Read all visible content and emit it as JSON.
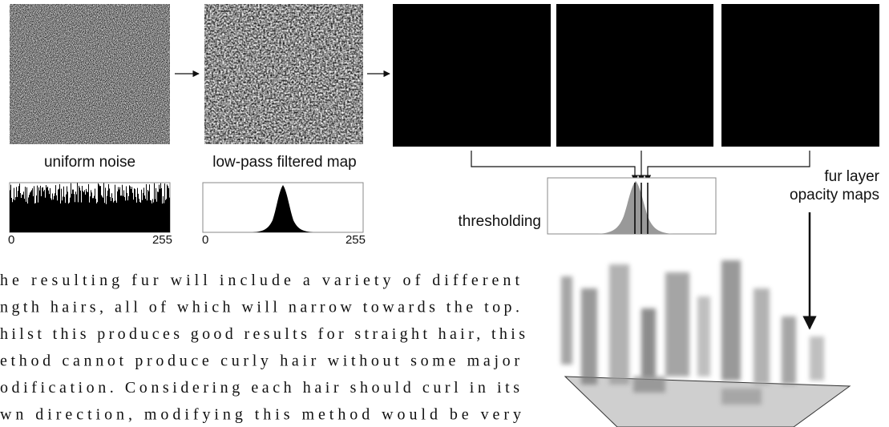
{
  "figure": {
    "labels": {
      "uniform_noise": "uniform noise",
      "low_pass": "low-pass filtered map",
      "thresholding": "thresholding",
      "fur_layer": [
        "fur layer",
        "opacity maps"
      ]
    },
    "hist1_axis": [
      "0",
      "255"
    ],
    "hist2_axis": [
      "0",
      "255"
    ]
  },
  "paragraph": {
    "lines": [
      "he resulting fur will include a variety of different",
      "ngth hairs, all of which will narrow towards the top.",
      "hilst this produces good results for straight hair, this",
      "ethod cannot produce curly hair without some major",
      "odification. Considering each hair should curl in its",
      "wn direction, modifying this method would be very"
    ]
  }
}
